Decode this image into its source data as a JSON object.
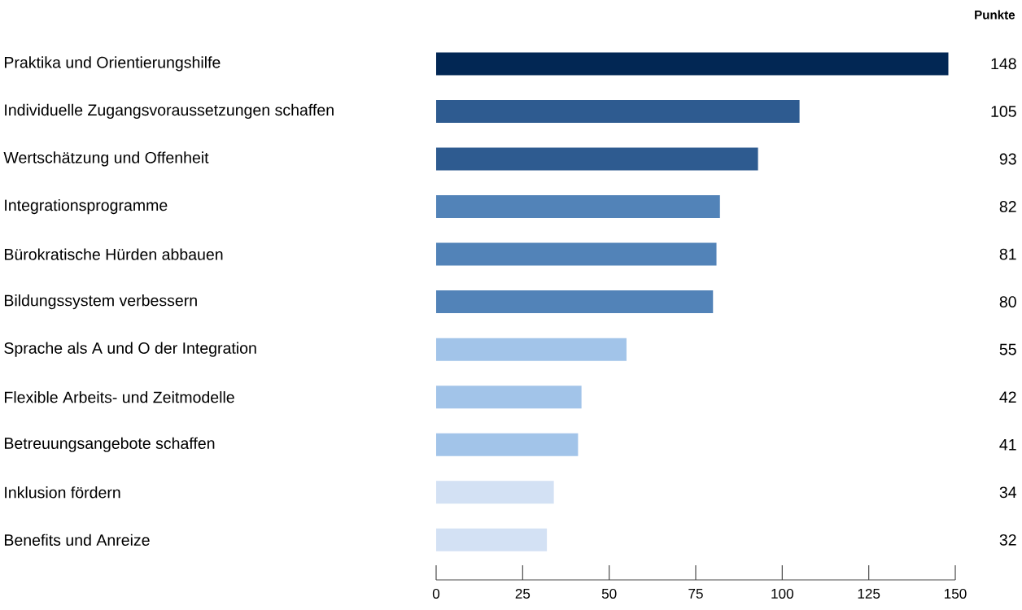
{
  "chart_data": {
    "type": "bar",
    "orientation": "horizontal",
    "categories": [
      "Praktika und Orientierungshilfe",
      "Individuelle Zugangsvoraussetzungen schaffen",
      "Wertschätzung und Offenheit",
      "Integrationsprogramme",
      "Bürokratische Hürden abbauen",
      "Bildungssystem verbessern",
      "Sprache als A und O der Integration",
      "Flexible Arbeits- und Zeitmodelle",
      "Betreuungsangebote schaffen",
      "Inklusion fördern",
      "Benefits und Anreize"
    ],
    "values": [
      148,
      105,
      93,
      82,
      81,
      80,
      55,
      42,
      41,
      34,
      32
    ],
    "colors": [
      "#022754",
      "#2e5b90",
      "#2e5b90",
      "#5283b8",
      "#5283b8",
      "#5283b8",
      "#a2c4e9",
      "#a2c4e9",
      "#a2c4e9",
      "#d3e1f4",
      "#d3e1f4"
    ],
    "xlim": [
      0,
      150
    ],
    "xticks": [
      0,
      25,
      50,
      75,
      100,
      125,
      150
    ],
    "data_labels": true,
    "grid": false,
    "annotations": [
      "Punkte"
    ]
  }
}
